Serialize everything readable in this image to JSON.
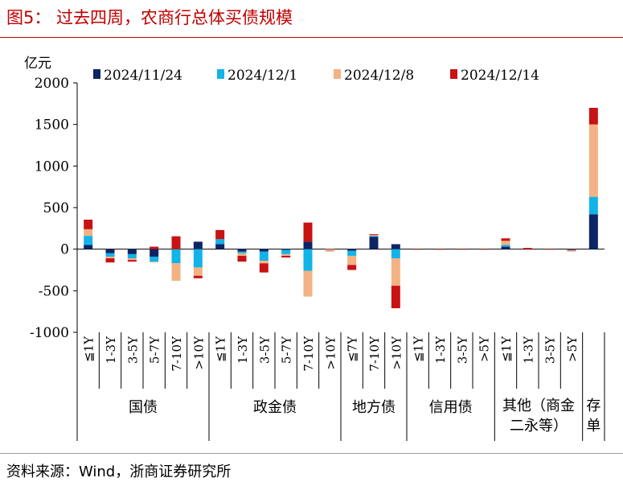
{
  "figure_title": "图5：  过去四周，农商行总体买债规模",
  "source": "资料来源：Wind，浙商证券研究所",
  "chart_data": {
    "type": "bar",
    "stacked": true,
    "ylabel": "亿元",
    "ylim": [
      -1000,
      2000
    ],
    "yticks": [
      -1000,
      -500,
      0,
      500,
      1000,
      1500,
      2000
    ],
    "ytick_labels": [
      "-1000",
      "-500",
      "0",
      "500",
      "1000",
      "1500",
      "2000"
    ],
    "grid": false,
    "legend_position": "top",
    "categories": [
      "≦1Y",
      "1-3Y",
      "3-5Y",
      "5-7Y",
      "7-10Y",
      ">10Y",
      "≦1Y",
      "1-3Y",
      "3-5Y",
      "5-7Y",
      "7-10Y",
      ">10Y",
      "≦7Y",
      "7-10Y",
      ">10Y",
      "≦1Y",
      "1-3Y",
      "3-5Y",
      ">5Y",
      "≦1Y",
      "1-3Y",
      "3-5Y",
      ">5Y",
      ""
    ],
    "groups": [
      {
        "label": "国债",
        "start": 0,
        "end": 5
      },
      {
        "label": "政金债",
        "start": 6,
        "end": 11
      },
      {
        "label": "地方债",
        "start": 12,
        "end": 14
      },
      {
        "label": "信用债",
        "start": 15,
        "end": 18
      },
      {
        "label": "其他（商金二永等）",
        "label_lines": [
          "其他（商金",
          "二永等）"
        ],
        "start": 19,
        "end": 22
      },
      {
        "label": "存单",
        "label_lines": [
          "存",
          "单"
        ],
        "start": 23,
        "end": 23
      }
    ],
    "series": [
      {
        "name": "2024/11/24",
        "color": "#0d2465",
        "values": [
          50,
          -50,
          -60,
          -90,
          0,
          90,
          60,
          -30,
          -30,
          -10,
          90,
          0,
          -20,
          150,
          60,
          -5,
          -5,
          -5,
          -5,
          30,
          -5,
          -5,
          -10,
          420
        ]
      },
      {
        "name": "2024/12/1",
        "color": "#12b3e8",
        "values": [
          110,
          -40,
          -50,
          -60,
          -170,
          -220,
          60,
          -20,
          -110,
          -50,
          -260,
          0,
          -60,
          10,
          -110,
          0,
          0,
          0,
          0,
          20,
          0,
          0,
          0,
          210
        ]
      },
      {
        "name": "2024/12/8",
        "color": "#f3b283",
        "values": [
          80,
          -20,
          -20,
          -10,
          -210,
          -100,
          0,
          -30,
          -30,
          -20,
          -310,
          -20,
          -110,
          10,
          -330,
          -5,
          -5,
          -5,
          -5,
          50,
          -5,
          -5,
          -10,
          870
        ]
      },
      {
        "name": "2024/12/14",
        "color": "#c81213",
        "values": [
          115,
          -50,
          -20,
          30,
          155,
          -30,
          110,
          -70,
          -110,
          -20,
          230,
          -5,
          -60,
          10,
          -270,
          5,
          5,
          5,
          5,
          30,
          15,
          5,
          -5,
          200
        ]
      }
    ]
  }
}
